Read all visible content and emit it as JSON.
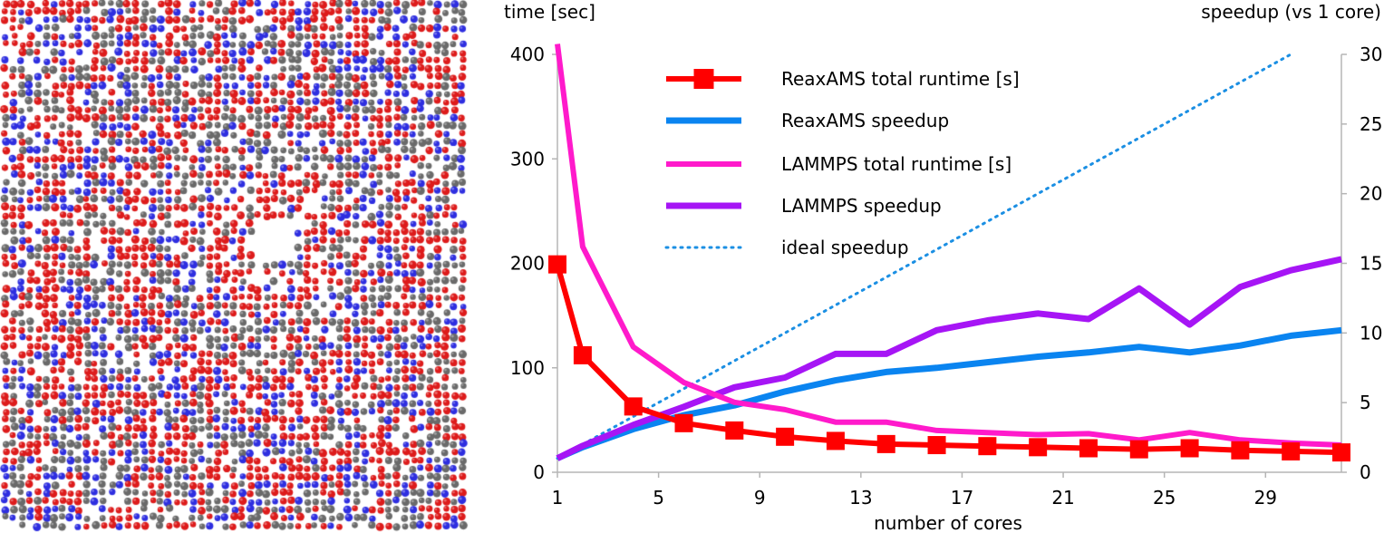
{
  "colors": {
    "reaxams_runtime": "#ff0000",
    "reaxams_speedup": "#0a84f0",
    "lammps_runtime": "#ff1acb",
    "lammps_speedup": "#a615f5",
    "ideal_speedup": "#1b8fe3",
    "atom_oxygen": "#dd1b1b",
    "atom_nitrogen": "#2e2ee0",
    "atom_carbon": "#6a6a6a"
  },
  "molecule_image": {
    "description_icon": "molecular-crystal-render"
  },
  "chart_data": {
    "type": "line",
    "xlabel": "number of cores",
    "ylabel_left": "time [sec]",
    "ylabel_right": "speedup (vs 1 core)",
    "xlim": [
      1,
      32
    ],
    "ylim_left": [
      0,
      400
    ],
    "ylim_right": [
      0,
      30
    ],
    "x_ticks": [
      "1",
      "5",
      "9",
      "13",
      "17",
      "21",
      "25",
      "29"
    ],
    "y_left_ticks": [
      "0",
      "100",
      "200",
      "300",
      "400"
    ],
    "y_right_ticks": [
      "0",
      "5",
      "10",
      "15",
      "20",
      "25",
      "30"
    ],
    "legend_placement": "top-center",
    "series": [
      {
        "name": "ReaxAMS total runtime [s]",
        "axis": "left",
        "marker": "square",
        "x": [
          1,
          2,
          4,
          6,
          8,
          10,
          12,
          14,
          16,
          18,
          20,
          22,
          24,
          26,
          28,
          30,
          32
        ],
        "y": [
          199,
          112,
          63,
          47,
          40,
          34,
          30,
          27,
          26,
          25,
          24,
          23,
          22,
          23,
          21,
          20,
          19
        ]
      },
      {
        "name": "ReaxAMS speedup",
        "axis": "right",
        "x": [
          1,
          2,
          4,
          6,
          8,
          10,
          12,
          14,
          16,
          18,
          20,
          22,
          24,
          26,
          28,
          30,
          32
        ],
        "y": [
          1,
          1.8,
          3.1,
          4.1,
          4.8,
          5.8,
          6.6,
          7.2,
          7.5,
          7.9,
          8.3,
          8.6,
          9.0,
          8.6,
          9.1,
          9.8,
          10.2
        ]
      },
      {
        "name": "LAMMPS total runtime [s]",
        "axis": "left",
        "x": [
          1,
          2,
          4,
          6,
          8,
          10,
          12,
          14,
          16,
          18,
          20,
          22,
          24,
          26,
          28,
          30,
          32
        ],
        "y": [
          410,
          216,
          120,
          86,
          67,
          60,
          48,
          48,
          40,
          38,
          36,
          37,
          31,
          38,
          31,
          28,
          26
        ]
      },
      {
        "name": "LAMMPS speedup",
        "axis": "right",
        "x": [
          1,
          2,
          4,
          6,
          8,
          10,
          12,
          14,
          16,
          18,
          20,
          22,
          24,
          26,
          28,
          30,
          32
        ],
        "y": [
          1,
          1.9,
          3.4,
          4.7,
          6.1,
          6.8,
          8.5,
          8.5,
          10.2,
          10.9,
          11.4,
          11.0,
          13.2,
          10.6,
          13.3,
          14.5,
          15.3
        ]
      },
      {
        "name": "ideal speedup",
        "axis": "right",
        "style": "dotted",
        "x": [
          1,
          30
        ],
        "y": [
          1,
          30
        ]
      }
    ]
  }
}
